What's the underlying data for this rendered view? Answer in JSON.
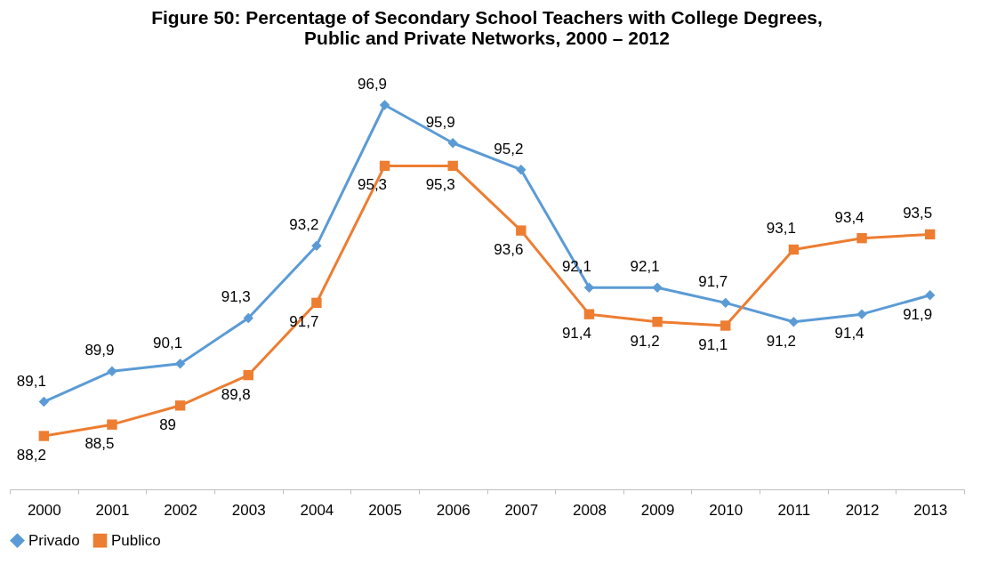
{
  "chart_data": {
    "type": "line",
    "title": "Figure 50: Percentage of Secondary School Teachers with College Degrees, Public and Private Networks, 2000 – 2012",
    "categories": [
      "2000",
      "2001",
      "2002",
      "2003",
      "2004",
      "2005",
      "2006",
      "2007",
      "2008",
      "2009",
      "2010",
      "2011",
      "2012",
      "2013"
    ],
    "series": [
      {
        "name": "Privado",
        "color": "#5b9bd5",
        "marker": "diamond",
        "values": [
          89.1,
          89.9,
          90.1,
          91.3,
          93.2,
          96.9,
          95.9,
          95.2,
          92.1,
          92.1,
          91.7,
          91.2,
          91.4,
          91.9
        ],
        "value_labels": [
          "89,1",
          "89,9",
          "90,1",
          "91,3",
          "93,2",
          "96,9",
          "95,9",
          "95,2",
          "92,1",
          "92,1",
          "91,7",
          "91,2",
          "91,4",
          "91,9"
        ]
      },
      {
        "name": "Publico",
        "color": "#ed7d31",
        "marker": "square",
        "values": [
          88.2,
          88.5,
          89,
          89.8,
          91.7,
          95.3,
          95.3,
          93.6,
          91.4,
          91.2,
          91.1,
          93.1,
          93.4,
          93.5
        ],
        "value_labels": [
          "88,2",
          "88,5",
          "89",
          "89,8",
          "91,7",
          "95,3",
          "95,3",
          "93,6",
          "91,4",
          "91,2",
          "91,1",
          "93,1",
          "93,4",
          "93,5"
        ]
      }
    ],
    "tick_labels": "x",
    "grid": false,
    "legend": "bottom"
  }
}
